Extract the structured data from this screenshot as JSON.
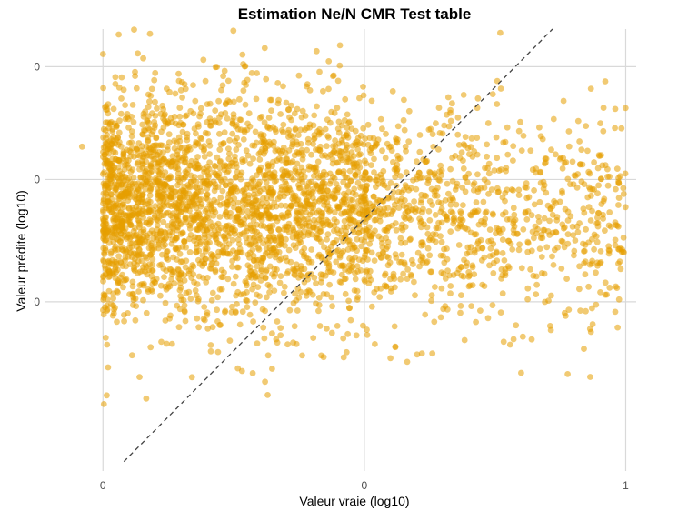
{
  "chart_data": {
    "type": "scatter",
    "title": "Estimation Ne/N CMR Test table",
    "xlabel": "Valeur vraie (log10)",
    "ylabel": "Valeur prédite (log10)",
    "xlim": [
      -0.11,
      1.02
    ],
    "ylim": [
      -0.36,
      0.58
    ],
    "x_ticks": [
      {
        "value": 0,
        "label": "0"
      },
      {
        "value": 0.5,
        "label": "0"
      },
      {
        "value": 1,
        "label": "1"
      }
    ],
    "y_ticks": [
      {
        "value": 0,
        "label": "0"
      },
      {
        "value": 0.26,
        "label": "0"
      },
      {
        "value": 0.5,
        "label": "0"
      }
    ],
    "reference_line": {
      "style": "dashed",
      "slope": 1,
      "intercept": 0,
      "color": "#444444"
    },
    "point_color": "#E69F00",
    "point_alpha": 0.55,
    "grid": true,
    "legend": "none",
    "series": [
      {
        "clusters": [
          {
            "x_range": [
              0.0,
              0.5
            ],
            "y_center": 0.2,
            "y_spread": 0.12,
            "count": 2600
          },
          {
            "x_range": [
              0.5,
              1.0
            ],
            "y_center": 0.18,
            "y_spread": 0.11,
            "count": 900
          }
        ],
        "points": [
          [
            0.09,
            0.57
          ],
          [
            0.23,
            0.48
          ],
          [
            0.24,
            0.47
          ],
          [
            0.45,
            0.47
          ],
          [
            0.44,
            0.48
          ],
          [
            0.69,
            0.44
          ],
          [
            0.01,
            0.42
          ],
          [
            0.98,
            0.41
          ],
          [
            -0.04,
            0.33
          ],
          [
            0.13,
            0.39
          ],
          [
            0.47,
            0.38
          ],
          [
            0.52,
            0.33
          ],
          [
            0.71,
            0.32
          ],
          [
            0.95,
            0.31
          ],
          [
            0.9,
            0.25
          ],
          [
            0.98,
            0.12
          ],
          [
            0.82,
            -0.08
          ],
          [
            0.79,
            -0.05
          ],
          [
            0.92,
            -0.1
          ],
          [
            0.63,
            -0.11
          ],
          [
            0.61,
            -0.11
          ],
          [
            0.31,
            -0.17
          ],
          [
            0.07,
            -0.16
          ],
          [
            0.55,
            -0.12
          ],
          [
            0.52,
            -0.09
          ]
        ]
      }
    ]
  }
}
